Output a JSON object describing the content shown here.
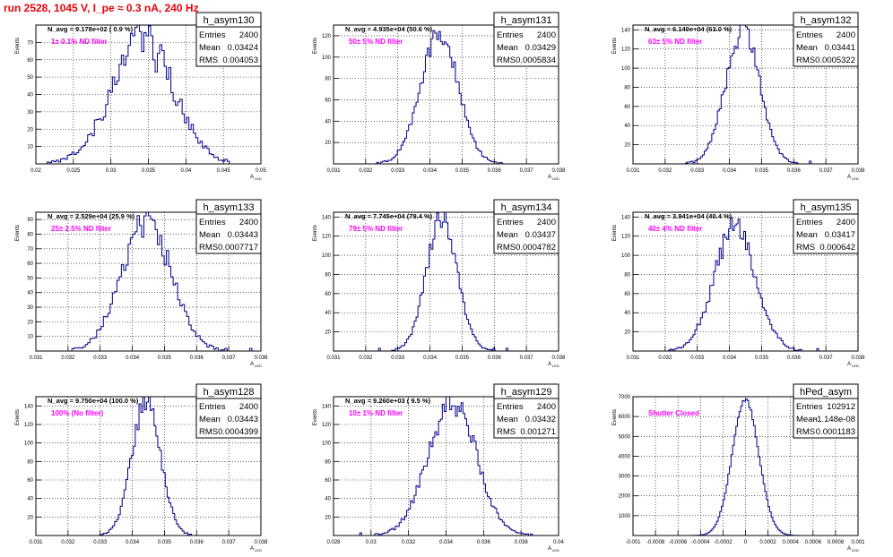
{
  "page": {
    "title": "run 2528,  1045 V, I_pe ≈ 0.3 nA, 240 Hz",
    "colors": {
      "title": "#e8000b",
      "annotation": "#ff00ff",
      "histogram": "#00008b"
    }
  },
  "stat_labels": {
    "entries": "Entries",
    "mean": "Mean",
    "rms": "RMS"
  },
  "chart_data": [
    {
      "type": "histogram",
      "name": "h_asym130",
      "ylabel": "Events",
      "xlabel": "A",
      "xlabel_sub": "LED",
      "nav": "N_avg = 9.178e+02 ( 0.9 %)",
      "annotation": "1± 0.1% ND filter",
      "xlim": [
        0.02,
        0.05
      ],
      "ylim": [
        0,
        80
      ],
      "xticks": [
        0.02,
        0.025,
        0.03,
        0.035,
        0.04,
        0.045,
        0.05
      ],
      "xtick_labels": [
        "0.02",
        "0.025",
        "0.03",
        "0.035",
        "0.04",
        "0.045",
        "0.05"
      ],
      "yticks": [
        10,
        20,
        30,
        40,
        50,
        60,
        70
      ],
      "stats": {
        "entries": "2400",
        "mean": "0.03424",
        "rms": "0.004053"
      },
      "mean": 0.03424,
      "sigma": 0.004053,
      "peak": 72,
      "noise": 0.18,
      "bins": 100,
      "seed": 11
    },
    {
      "type": "histogram",
      "name": "h_asym131",
      "ylabel": "Events",
      "xlabel": "A",
      "xlabel_sub": "LED",
      "nav": "N_avg = 4.935e+04 (50.6 %)",
      "annotation": "50± 5% ND filter",
      "xlim": [
        0.031,
        0.038
      ],
      "ylim": [
        0,
        130
      ],
      "xticks": [
        0.031,
        0.032,
        0.033,
        0.034,
        0.035,
        0.036,
        0.037,
        0.038
      ],
      "xtick_labels": [
        "0.031",
        "0.032",
        "0.033",
        "0.034",
        "0.035",
        "0.036",
        "0.037",
        "0.038"
      ],
      "yticks": [
        20,
        40,
        60,
        80,
        100,
        120
      ],
      "stats": {
        "entries": "2400",
        "mean": "0.03429",
        "rms": "0.0005834"
      },
      "mean": 0.03429,
      "sigma": 0.0005834,
      "peak": 122,
      "noise": 0.09,
      "bins": 120,
      "seed": 23
    },
    {
      "type": "histogram",
      "name": "h_asym132",
      "ylabel": "Events",
      "xlabel": "A",
      "xlabel_sub": "LED",
      "nav": "N_avg = 6.140e+04 (63.0 %)",
      "annotation": "63± 5% ND filter",
      "xlim": [
        0.031,
        0.038
      ],
      "ylim": [
        0,
        145
      ],
      "xticks": [
        0.031,
        0.032,
        0.033,
        0.034,
        0.035,
        0.036,
        0.037,
        0.038
      ],
      "xtick_labels": [
        "0.031",
        "0.032",
        "0.033",
        "0.034",
        "0.035",
        "0.036",
        "0.037",
        "0.038"
      ],
      "yticks": [
        20,
        40,
        60,
        80,
        100,
        120,
        140
      ],
      "stats": {
        "entries": "2400",
        "mean": "0.03441",
        "rms": "0.0005322"
      },
      "mean": 0.03441,
      "sigma": 0.0005322,
      "peak": 140,
      "noise": 0.09,
      "bins": 120,
      "seed": 37
    },
    {
      "type": "histogram",
      "name": "h_asym133",
      "ylabel": "Events",
      "xlabel": "A",
      "xlabel_sub": "LED",
      "nav": "N_avg = 2.529e+04 (25.9 %)",
      "annotation": "25± 2.5% ND filter",
      "xlim": [
        0.031,
        0.038
      ],
      "ylim": [
        0,
        95
      ],
      "xticks": [
        0.031,
        0.032,
        0.033,
        0.034,
        0.035,
        0.036,
        0.037,
        0.038
      ],
      "xtick_labels": [
        "0.031",
        "0.032",
        "0.033",
        "0.034",
        "0.035",
        "0.036",
        "0.037",
        "0.038"
      ],
      "yticks": [
        10,
        20,
        30,
        40,
        50,
        60,
        70,
        80,
        90
      ],
      "stats": {
        "entries": "2400",
        "mean": "0.03443",
        "rms": "0.0007717"
      },
      "mean": 0.03443,
      "sigma": 0.0007717,
      "peak": 88,
      "noise": 0.12,
      "bins": 100,
      "seed": 41
    },
    {
      "type": "histogram",
      "name": "h_asym134",
      "ylabel": "Events",
      "xlabel": "A",
      "xlabel_sub": "LED",
      "nav": "N_avg = 7.745e+04 (79.4 %)",
      "annotation": "79± 5% ND filter",
      "xlim": [
        0.031,
        0.038
      ],
      "ylim": [
        0,
        145
      ],
      "xticks": [
        0.031,
        0.032,
        0.033,
        0.034,
        0.035,
        0.036,
        0.037,
        0.038
      ],
      "xtick_labels": [
        "0.031",
        "0.032",
        "0.033",
        "0.034",
        "0.035",
        "0.036",
        "0.037",
        "0.038"
      ],
      "yticks": [
        20,
        40,
        60,
        80,
        100,
        120,
        140
      ],
      "stats": {
        "entries": "2400",
        "mean": "0.03437",
        "rms": "0.0004782"
      },
      "mean": 0.03437,
      "sigma": 0.0004782,
      "peak": 140,
      "noise": 0.08,
      "bins": 120,
      "seed": 53
    },
    {
      "type": "histogram",
      "name": "h_asym135",
      "ylabel": "Events",
      "xlabel": "A",
      "xlabel_sub": "LED",
      "nav": "N_avg = 3.941e+04 (40.4 %)",
      "annotation": "40± 4% ND filter",
      "xlim": [
        0.031,
        0.038
      ],
      "ylim": [
        0,
        145
      ],
      "xticks": [
        0.031,
        0.032,
        0.033,
        0.034,
        0.035,
        0.036,
        0.037,
        0.038
      ],
      "xtick_labels": [
        "0.031",
        "0.032",
        "0.033",
        "0.034",
        "0.035",
        "0.036",
        "0.037",
        "0.038"
      ],
      "yticks": [
        20,
        40,
        60,
        80,
        100,
        120,
        140
      ],
      "stats": {
        "entries": "2400",
        "mean": "0.03417",
        "rms": "0.000642"
      },
      "mean": 0.03417,
      "sigma": 0.000642,
      "peak": 128,
      "noise": 0.1,
      "bins": 120,
      "seed": 61
    },
    {
      "type": "histogram",
      "name": "h_asym128",
      "ylabel": "Events",
      "xlabel": "A",
      "xlabel_sub": "LED",
      "nav": "N_avg = 9.750e+04 (100.0 %)",
      "annotation": "100% (No filter)",
      "xlim": [
        0.031,
        0.038
      ],
      "ylim": [
        0,
        150
      ],
      "xticks": [
        0.031,
        0.032,
        0.033,
        0.034,
        0.035,
        0.036,
        0.037,
        0.038
      ],
      "xtick_labels": [
        "0.031",
        "0.032",
        "0.033",
        "0.034",
        "0.035",
        "0.036",
        "0.037",
        "0.038"
      ],
      "yticks": [
        20,
        40,
        60,
        80,
        100,
        120,
        140
      ],
      "stats": {
        "entries": "2400",
        "mean": "0.03443",
        "rms": "0.0004399"
      },
      "mean": 0.03443,
      "sigma": 0.0004399,
      "peak": 145,
      "noise": 0.08,
      "bins": 120,
      "seed": 71
    },
    {
      "type": "histogram",
      "name": "h_asym129",
      "ylabel": "Events",
      "xlabel": "A",
      "xlabel_sub": "LED",
      "nav": "N_avg = 9.260e+03 ( 9.5 %)",
      "annotation": "10± 1% ND filter",
      "xlim": [
        0.028,
        0.04
      ],
      "ylim": [
        0,
        150
      ],
      "xticks": [
        0.028,
        0.03,
        0.032,
        0.034,
        0.036,
        0.038,
        0.04
      ],
      "xtick_labels": [
        "0.028",
        "0.03",
        "0.032",
        "0.034",
        "0.036",
        "0.038",
        "0.04"
      ],
      "yticks": [
        20,
        40,
        60,
        80,
        100,
        120,
        140
      ],
      "stats": {
        "entries": "2400",
        "mean": "0.03432",
        "rms": "0.001271"
      },
      "mean": 0.03432,
      "sigma": 0.001271,
      "peak": 145,
      "noise": 0.12,
      "bins": 120,
      "seed": 83
    },
    {
      "type": "histogram",
      "name": "hPed_asym",
      "ylabel": "Events",
      "xlabel": "A",
      "xlabel_sub": "LED",
      "nav": "",
      "annotation": "Shutter Closed",
      "xlim": [
        -0.001,
        0.001
      ],
      "ylim": [
        0,
        7000
      ],
      "xticks": [
        -0.001,
        -0.0008,
        -0.0006,
        -0.0004,
        -0.0002,
        0,
        0.0002,
        0.0004,
        0.0006,
        0.0008,
        0.001
      ],
      "xtick_labels": [
        "-0.001",
        "-0.0008",
        "-0.0006",
        "-0.0004",
        "-0.0002",
        "0",
        "0.0002",
        "0.0004",
        "0.0006",
        "0.0008",
        "0.001"
      ],
      "yticks": [
        1000,
        2000,
        3000,
        4000,
        5000,
        6000,
        7000
      ],
      "stats": {
        "entries": "102912",
        "mean": "-1.148e-08",
        "rms": "0.0001183"
      },
      "mean": 0,
      "sigma": 0.0001183,
      "peak": 6800,
      "noise": 0.02,
      "bins": 140,
      "seed": 97
    }
  ]
}
